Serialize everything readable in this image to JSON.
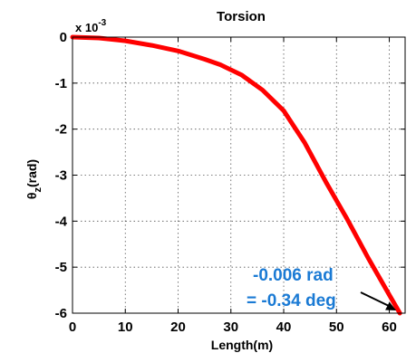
{
  "chart_data": {
    "type": "line",
    "title": "Torsion",
    "xlabel": "Length(m)",
    "ylabel": "θz(rad)",
    "ylabel_main": "θ",
    "ylabel_sub": "z",
    "ylabel_tail": "(rad)",
    "exponent_base": "x 10",
    "exponent_power": "-3",
    "xlim": [
      0,
      63
    ],
    "ylim": [
      -6,
      0
    ],
    "x_ticks": [
      0,
      10,
      20,
      30,
      40,
      50,
      60
    ],
    "y_ticks": [
      0,
      -1,
      -2,
      -3,
      -4,
      -5,
      -6
    ],
    "grid": true,
    "series": [
      {
        "color": "#ff0000",
        "x": [
          0,
          5,
          10,
          15,
          20,
          25,
          28,
          32,
          36,
          40,
          44,
          48,
          52,
          56,
          60,
          62
        ],
        "y": [
          0,
          -0.02,
          -0.08,
          -0.18,
          -0.3,
          -0.48,
          -0.6,
          -0.82,
          -1.15,
          -1.6,
          -2.3,
          -3.15,
          -3.95,
          -4.8,
          -5.6,
          -6.0
        ]
      }
    ],
    "annotation": {
      "line1": "-0.006 rad",
      "line2": "= -0.34 deg",
      "color": "#1a7ad4",
      "arrow_target": [
        62,
        -6.0
      ]
    }
  }
}
